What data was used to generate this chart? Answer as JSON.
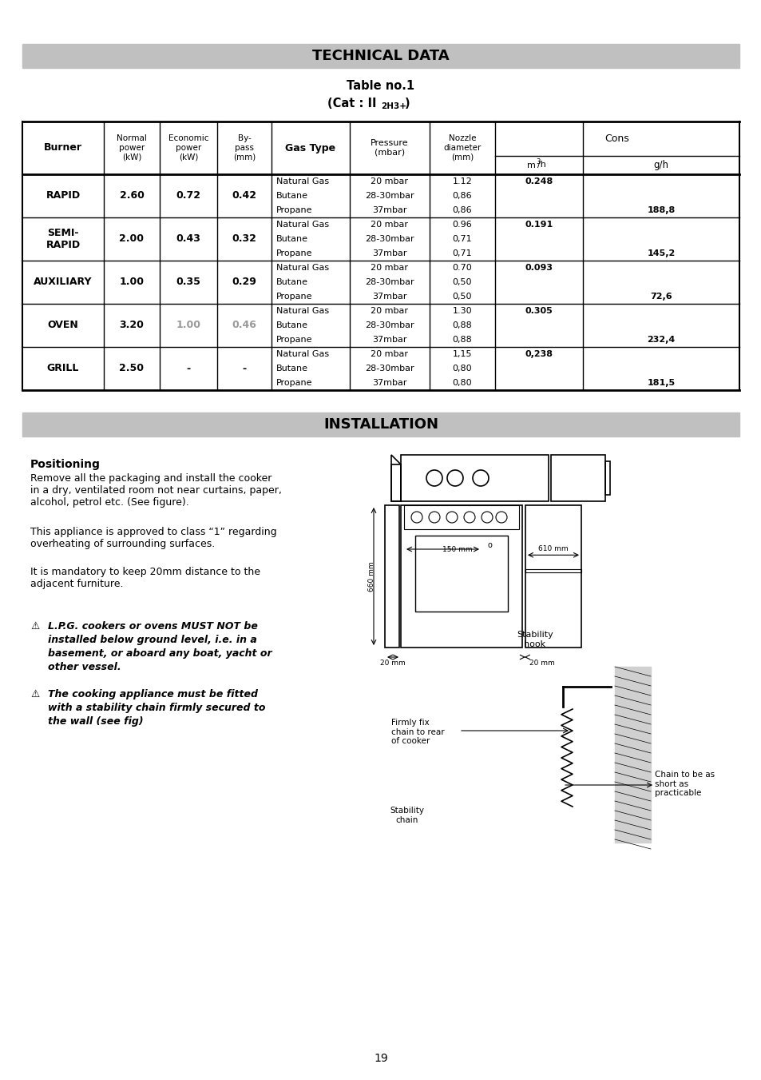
{
  "page_bg": "#ffffff",
  "section1_title": "TECHNICAL DATA",
  "section2_title": "INSTALLATION",
  "header_bg": "#c0c0c0",
  "table_title1": "Table no.1",
  "rows": [
    {
      "burner": "RAPID",
      "normal": "2.60",
      "economic": "0.72",
      "bypass": "0.42",
      "gas_types": [
        "Natural Gas",
        "Butane",
        "Propane"
      ],
      "pressures": [
        "20 mbar",
        "28-30mbar",
        "37mbar"
      ],
      "nozzles": [
        "1.12",
        "0,86",
        "0,86"
      ],
      "cons_m3": "0.248",
      "cons_g": "188,8",
      "eco_gray": false,
      "bypass_gray": false
    },
    {
      "burner": "SEMI-\nRAPID",
      "normal": "2.00",
      "economic": "0.43",
      "bypass": "0.32",
      "gas_types": [
        "Natural Gas",
        "Butane",
        "Propane"
      ],
      "pressures": [
        "20 mbar",
        "28-30mbar",
        "37mbar"
      ],
      "nozzles": [
        "0.96",
        "0,71",
        "0,71"
      ],
      "cons_m3": "0.191",
      "cons_g": "145,2",
      "eco_gray": false,
      "bypass_gray": false
    },
    {
      "burner": "AUXILIARY",
      "normal": "1.00",
      "economic": "0.35",
      "bypass": "0.29",
      "gas_types": [
        "Natural Gas",
        "Butane",
        "Propane"
      ],
      "pressures": [
        "20 mbar",
        "28-30mbar",
        "37mbar"
      ],
      "nozzles": [
        "0.70",
        "0,50",
        "0,50"
      ],
      "cons_m3": "0.093",
      "cons_g": "72,6",
      "eco_gray": false,
      "bypass_gray": false
    },
    {
      "burner": "OVEN",
      "normal": "3.20",
      "economic": "1.00",
      "bypass": "0.46",
      "gas_types": [
        "Natural Gas",
        "Butane",
        "Propane"
      ],
      "pressures": [
        "20 mbar",
        "28-30mbar",
        "37mbar"
      ],
      "nozzles": [
        "1.30",
        "0,88",
        "0,88"
      ],
      "cons_m3": "0.305",
      "cons_g": "232,4",
      "eco_gray": true,
      "bypass_gray": true
    },
    {
      "burner": "GRILL",
      "normal": "2.50",
      "economic": "-",
      "bypass": "-",
      "gas_types": [
        "Natural Gas",
        "Butane",
        "Propane"
      ],
      "pressures": [
        "20 mbar",
        "28-30mbar",
        "37mbar"
      ],
      "nozzles": [
        "1,15",
        "0,80",
        "0,80"
      ],
      "cons_m3": "0,238",
      "cons_g": "181,5",
      "eco_gray": false,
      "bypass_gray": false
    }
  ],
  "positioning_title": "Positioning",
  "positioning_text1": "Remove all the packaging and install the cooker\nin a dry, ventilated room not near curtains, paper,\nalcohol, petrol etc. (See figure).",
  "positioning_text2": "This appliance is approved to class “1” regarding\noverheating of surrounding surfaces.",
  "positioning_text3": "It is mandatory to keep 20mm distance to the\nadjacent furniture.",
  "warn1_normal": "L.P.G. cookers or ovens ",
  "warn1_bold": "MUST NOT be",
  "warn1_rest": "\ninstalled below ground level, i.e. in a\nbasement, or aboard any boat, yacht or\nother vessel.",
  "warn2_text": "The cooking appliance must be fitted\nwith a stability chain firmly secured to\nthe wall (see fig)",
  "page_num": "19"
}
